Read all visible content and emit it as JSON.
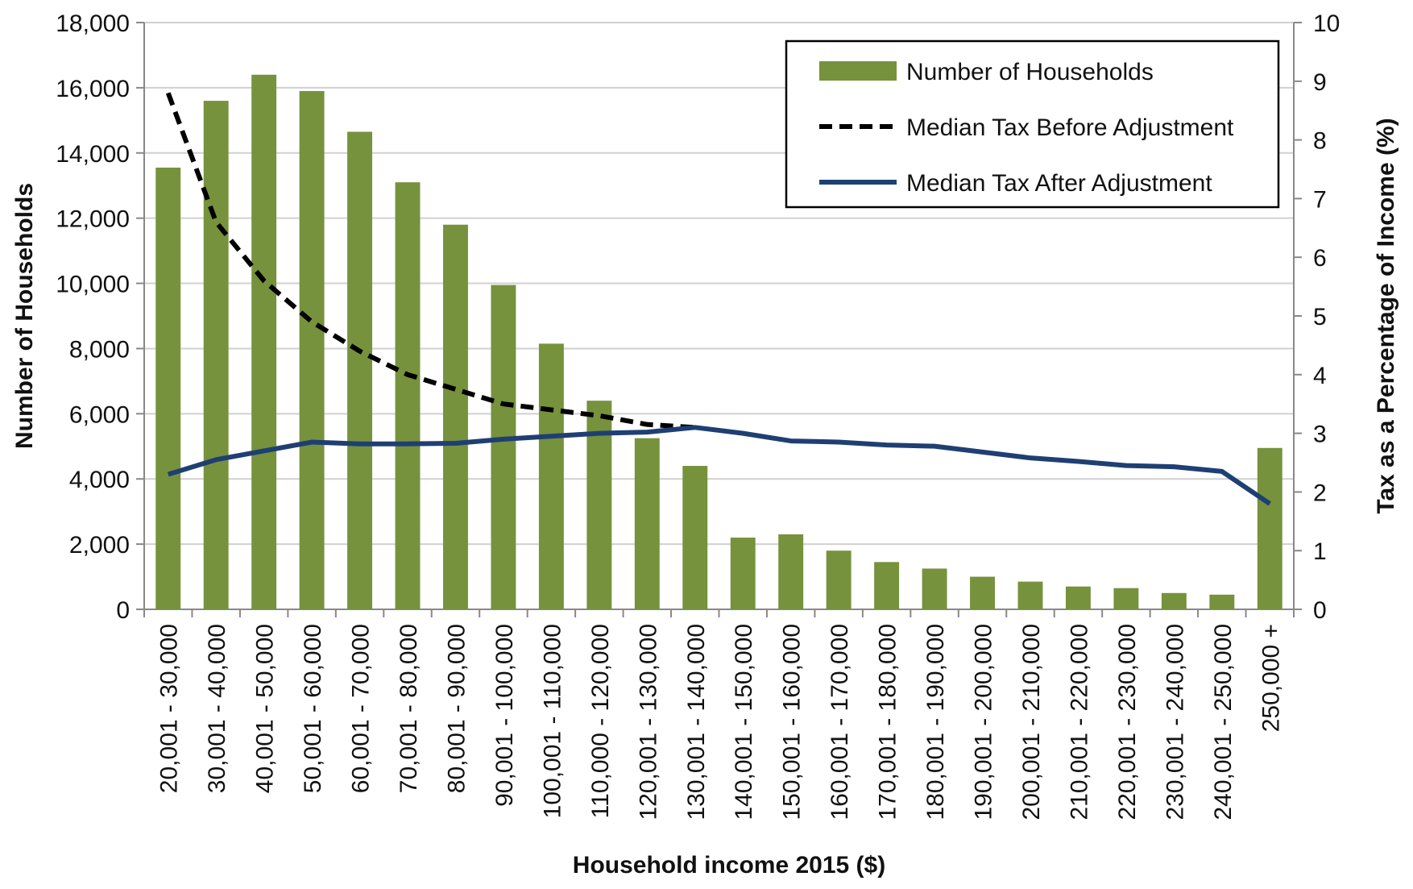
{
  "chart_data": {
    "type": "bar",
    "x_label": "Household income 2015 ($)",
    "y_label": "Number of Households",
    "y2_label": "Tax as a Percentage of Income (%)",
    "categories": [
      "20,001 - 30,000",
      "30,001 - 40,000",
      "40,001 - 50,000",
      "50,001 - 60,000",
      "60,001 - 70,000",
      "70,001 - 80,000",
      "80,001 - 90,000",
      "90,001 - 100,000",
      "100,001 - 110,000",
      "110,000 - 120,000",
      "120,001 - 130,000",
      "130,001 - 140,000",
      "140,001 - 150,000",
      "150,001 - 160,000",
      "160,001 - 170,000",
      "170,001 - 180,000",
      "180,001 - 190,000",
      "190,001 - 200,000",
      "200,001 - 210,000",
      "210,001 - 220,000",
      "220,001 - 230,000",
      "230,001 - 240,000",
      "240,001 - 250,000",
      "250,000 +"
    ],
    "series": [
      {
        "name": "Number of Households",
        "type": "bar",
        "color": "#76923c",
        "values": [
          13550,
          15600,
          16400,
          15900,
          14650,
          13100,
          11800,
          9950,
          8150,
          6400,
          5250,
          4400,
          2200,
          2300,
          1800,
          1450,
          1250,
          1000,
          850,
          700,
          650,
          500,
          450,
          4950
        ]
      },
      {
        "name": "Median Tax Before Adjustment",
        "type": "line",
        "style": "dashed",
        "axis": "y2",
        "color": "#000000",
        "values": [
          8.8,
          6.6,
          5.6,
          4.9,
          4.4,
          4.0,
          3.75,
          3.5,
          3.4,
          3.3,
          3.15,
          3.1,
          null,
          null,
          null,
          null,
          null,
          null,
          null,
          null,
          null,
          null,
          null,
          null
        ]
      },
      {
        "name": "Median Tax After Adjustment",
        "type": "line",
        "style": "solid",
        "axis": "y2",
        "color": "#1f3f73",
        "values": [
          2.3,
          2.55,
          2.7,
          2.85,
          2.82,
          2.82,
          2.83,
          2.9,
          2.95,
          3.0,
          3.02,
          3.1,
          3.0,
          2.87,
          2.85,
          2.8,
          2.78,
          2.68,
          2.58,
          2.52,
          2.45,
          2.43,
          2.35,
          1.8
        ]
      }
    ],
    "ylim": [
      0,
      18000
    ],
    "yticks": [
      0,
      {
        "value": 2000,
        "label": "2,000"
      },
      {
        "value": 4000,
        "label": "4,000"
      },
      {
        "value": 6000,
        "label": "6,000"
      },
      {
        "value": 8000,
        "label": "8,000"
      },
      {
        "value": 10000,
        "label": "10,000"
      },
      {
        "value": 12000,
        "label": "12,000"
      },
      {
        "value": 14000,
        "label": "14,000"
      },
      {
        "value": 16000,
        "label": "16,000"
      },
      {
        "value": 18000,
        "label": "18,000"
      }
    ],
    "y2lim": [
      0,
      10
    ],
    "y2ticks": [
      0,
      1,
      2,
      3,
      4,
      5,
      6,
      7,
      8,
      9,
      10
    ],
    "grid": true,
    "legend": "top-right"
  }
}
